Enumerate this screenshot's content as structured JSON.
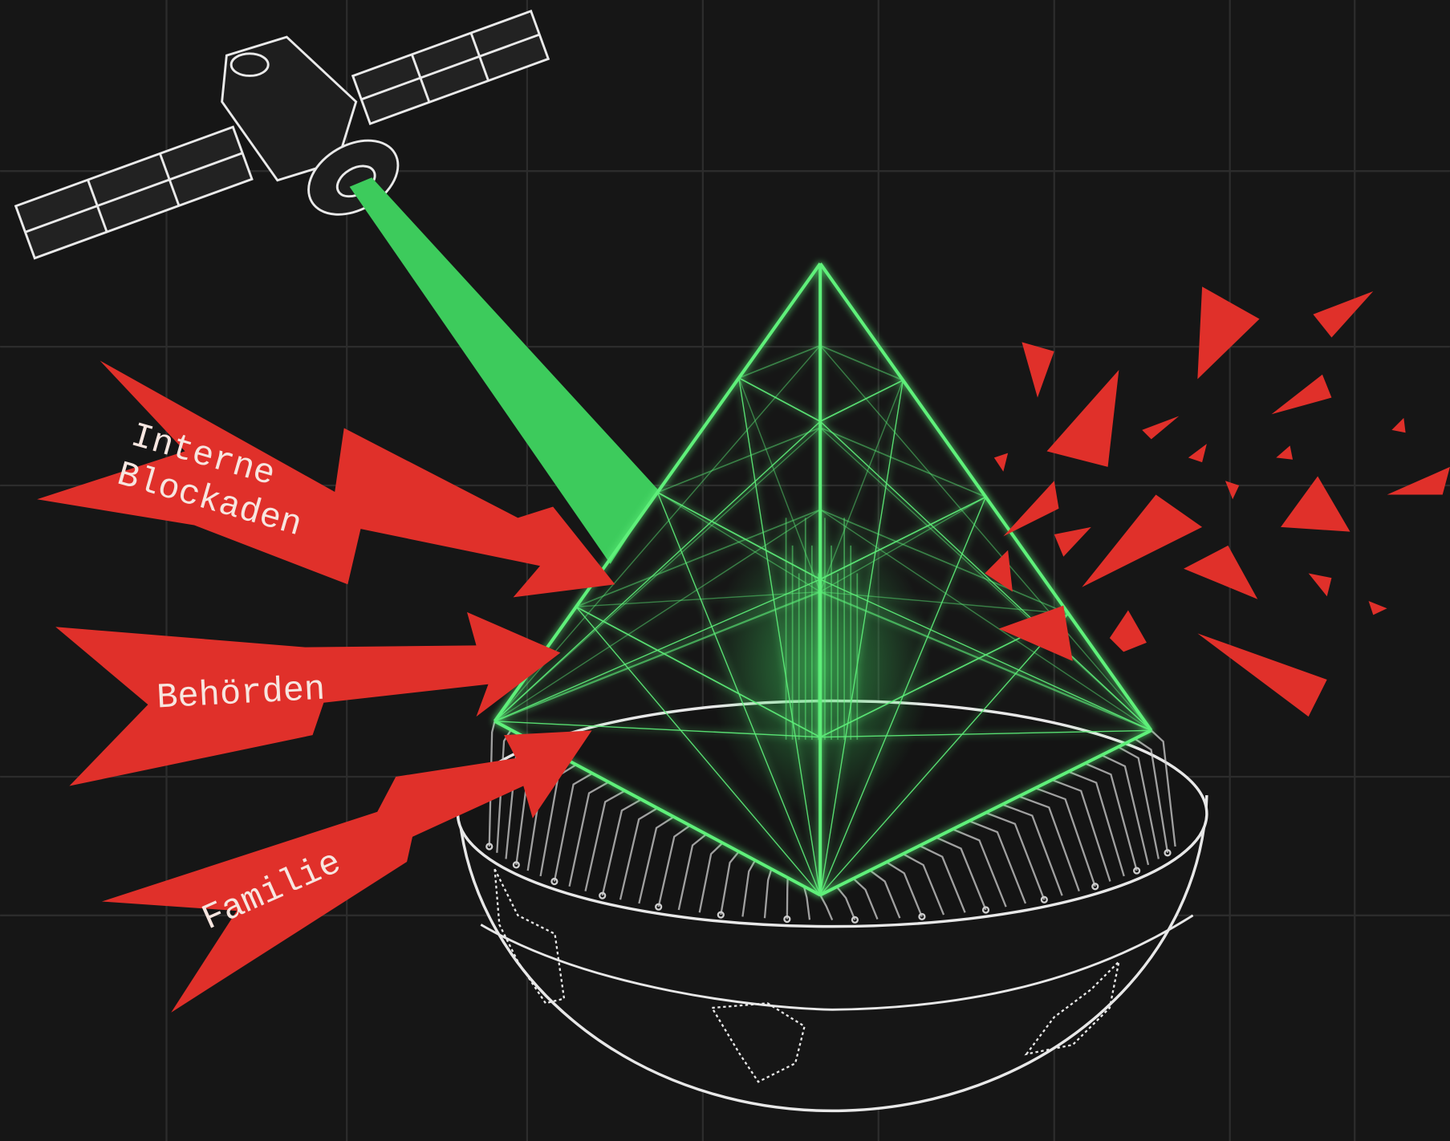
{
  "arrows": [
    {
      "lines": [
        "Interne",
        "Blockaden"
      ]
    },
    {
      "lines": [
        "Behörden"
      ]
    },
    {
      "lines": [
        "Familie"
      ]
    }
  ]
}
